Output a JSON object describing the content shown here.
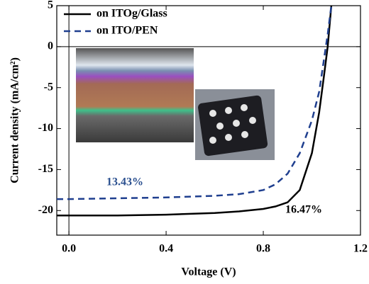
{
  "chart_data": {
    "type": "line",
    "x_label": "Voltage (V)",
    "y_label": "Current density (mA/cm²)",
    "x": [
      -0.05,
      0,
      0.2,
      0.4,
      0.6,
      0.7,
      0.8,
      0.85,
      0.9,
      0.95,
      1.0,
      1.03,
      1.05,
      1.065,
      1.08
    ],
    "series": [
      {
        "name": "on ITOg/Glass",
        "color": "#000000",
        "dash": false,
        "values": [
          -20.6,
          -20.6,
          -20.6,
          -20.5,
          -20.3,
          -20.1,
          -19.8,
          -19.5,
          -19.0,
          -17.5,
          -13,
          -8,
          -3.5,
          0,
          5
        ]
      },
      {
        "name": "on ITO/PEN",
        "color": "#1f3f8f",
        "dash": true,
        "values": [
          -18.6,
          -18.6,
          -18.5,
          -18.4,
          -18.2,
          -18.0,
          -17.5,
          -16.8,
          -15.5,
          -13,
          -9,
          -5.5,
          -1.5,
          1.5,
          5
        ]
      }
    ],
    "annotations": [
      {
        "text": "13.43%",
        "color": "#2a4f8f"
      },
      {
        "text": "16.47%",
        "color": "#000000"
      }
    ],
    "xlim": [
      -0.05,
      1.2
    ],
    "xticks": [
      {
        "value": 0,
        "label": "0.0"
      },
      0.4,
      0.8,
      1.2
    ],
    "ylim": [
      -23,
      5
    ],
    "yticks": [
      5,
      0,
      -5,
      -10,
      -15,
      -20
    ],
    "legend": "top-left"
  }
}
